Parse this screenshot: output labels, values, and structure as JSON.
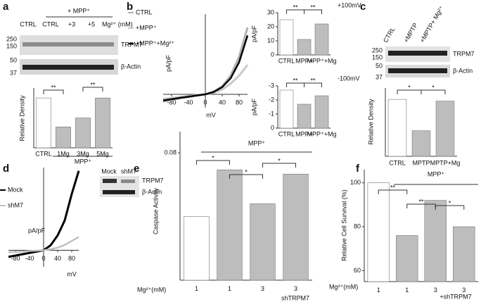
{
  "panel_labels": [
    "a",
    "b",
    "c",
    "d",
    "e",
    "f"
  ],
  "blots": {
    "a": {
      "header": "+ MPP⁺",
      "lanes": [
        "CTRL",
        "CTRL",
        "+3",
        "+5"
      ],
      "unit": "Mg²⁺ (mM)",
      "markers": [
        250,
        150,
        50,
        37
      ],
      "bands": [
        "TRPM7",
        "β-Actin"
      ]
    },
    "c": {
      "lanes": [
        "CTRL",
        "+MPTP",
        "+MPTP+ Mg²⁺"
      ],
      "markers": [
        250,
        150,
        50,
        37
      ],
      "bands": [
        "TRPM7",
        "β-Actin"
      ]
    },
    "d": {
      "lanes": [
        "Mock",
        "shM7"
      ],
      "bands": [
        "TRPM7",
        "β-Actin"
      ]
    }
  },
  "chart_data": [
    {
      "type": "bar",
      "ylabel": "Relative Density",
      "categories": [
        "CTRL",
        "1Mg",
        "3Mg",
        "5Mg"
      ],
      "values": [
        1.0,
        0.42,
        0.6,
        1.0
      ],
      "colors": [
        "#ffffff",
        "#bdbdbd",
        "#bdbdbd",
        "#bdbdbd"
      ],
      "ylim": [
        0,
        1.2
      ],
      "annotations": [
        "**",
        "**"
      ],
      "group_label": "MPP⁺"
    },
    {
      "type": "line",
      "xlabel": "mV",
      "ylabel": "pA/pF",
      "x": [
        -100,
        -80,
        -60,
        -40,
        -20,
        0,
        20,
        40,
        60,
        80,
        100
      ],
      "xlim": [
        -100,
        100
      ],
      "ylim": [
        -5,
        30
      ],
      "xticks": [
        -80,
        -40,
        0,
        40,
        80
      ],
      "series": [
        {
          "name": "CTRL",
          "color": "#b0b0b0",
          "values": [
            -2.7,
            -2,
            -1.5,
            -1,
            -0.5,
            0,
            1,
            3,
            7,
            14,
            25
          ]
        },
        {
          "name": "+MPP⁺",
          "color": "#c8c8c8",
          "values": [
            -1.7,
            -1.3,
            -1,
            -0.6,
            -0.3,
            0,
            0.6,
            1.8,
            4,
            7,
            11
          ]
        },
        {
          "name": "+MPP⁺+Mg²⁺",
          "color": "#000000",
          "values": [
            -2.3,
            -1.8,
            -1.3,
            -0.9,
            -0.4,
            0,
            0.9,
            2.7,
            6,
            12,
            22
          ]
        }
      ]
    },
    {
      "type": "bar",
      "title": "+100mV",
      "ylabel": "pA/pF",
      "categories": [
        "CTRL",
        "MPP+",
        "MPP⁺+Mg"
      ],
      "values": [
        25,
        11,
        22
      ],
      "colors": [
        "#ffffff",
        "#bdbdbd",
        "#bdbdbd"
      ],
      "ylim": [
        0,
        30
      ],
      "yticks": [
        0,
        10,
        20,
        30
      ],
      "annotations": [
        "**",
        "**"
      ]
    },
    {
      "type": "bar",
      "title": "-100mV",
      "ylabel": "pA/pF",
      "categories": [
        "CTRL",
        "MPP+",
        "MPP⁺+Mg"
      ],
      "values": [
        -2.7,
        -1.7,
        -2.3
      ],
      "colors": [
        "#ffffff",
        "#bdbdbd",
        "#bdbdbd"
      ],
      "ylim": [
        0,
        -3
      ],
      "yticks": [
        0,
        -1,
        -2,
        -3
      ],
      "annotations": [
        "**",
        "**"
      ]
    },
    {
      "type": "bar",
      "ylabel": "Relative Density",
      "categories": [
        "CTRL",
        "MPTP",
        "MPTP+Mg"
      ],
      "values": [
        1.0,
        0.45,
        0.97
      ],
      "colors": [
        "#ffffff",
        "#bdbdbd",
        "#bdbdbd"
      ],
      "ylim": [
        0,
        1.2
      ],
      "annotations": [
        "*",
        "*"
      ]
    },
    {
      "type": "line",
      "xlabel": "mV",
      "ylabel": "pA/pF",
      "x": [
        -100,
        -80,
        -60,
        -40,
        -20,
        0,
        20,
        40,
        60,
        80,
        100
      ],
      "xlim": [
        -100,
        100
      ],
      "ylim": [
        -5,
        25
      ],
      "xticks": [
        -80,
        -40,
        0,
        40,
        80
      ],
      "series": [
        {
          "name": "Mock",
          "color": "#000000",
          "values": [
            -2,
            -1.6,
            -1.2,
            -0.8,
            -0.4,
            0,
            1.5,
            4.5,
            9,
            17,
            24
          ]
        },
        {
          "name": "shM7",
          "color": "#c0c0c0",
          "values": [
            -0.6,
            -0.5,
            -0.4,
            -0.2,
            -0.1,
            0,
            0.3,
            0.8,
            1.6,
            2.8,
            4
          ]
        }
      ]
    },
    {
      "type": "bar",
      "ylabel": "Caspase Activity",
      "x_label": "Mg²⁺(mM)",
      "categories": [
        "1",
        "1",
        "3",
        "3"
      ],
      "x_note": "shTRPM7",
      "values": [
        0.065,
        0.076,
        0.068,
        0.075
      ],
      "colors": [
        "#ffffff",
        "#bdbdbd",
        "#bdbdbd",
        "#bdbdbd"
      ],
      "ylim": [
        0.05,
        0.085
      ],
      "yticks": [
        0.08
      ],
      "annotations": [
        "*",
        "*",
        "*"
      ],
      "group_label": "MPP⁺"
    },
    {
      "type": "bar",
      "ylabel": "Relative Cell Survival (%)",
      "x_label": "Mg²⁺(mM)",
      "categories": [
        "1",
        "1",
        "3",
        "3"
      ],
      "x_note": "+shTRPM7",
      "values": [
        100,
        76,
        92,
        80
      ],
      "colors": [
        "#ffffff",
        "#bdbdbd",
        "#bdbdbd",
        "#bdbdbd"
      ],
      "ylim": [
        55,
        106
      ],
      "yticks": [
        60,
        80,
        100
      ],
      "annotations": [
        "**",
        "**",
        "*"
      ],
      "group_label": "MPP⁺"
    }
  ]
}
